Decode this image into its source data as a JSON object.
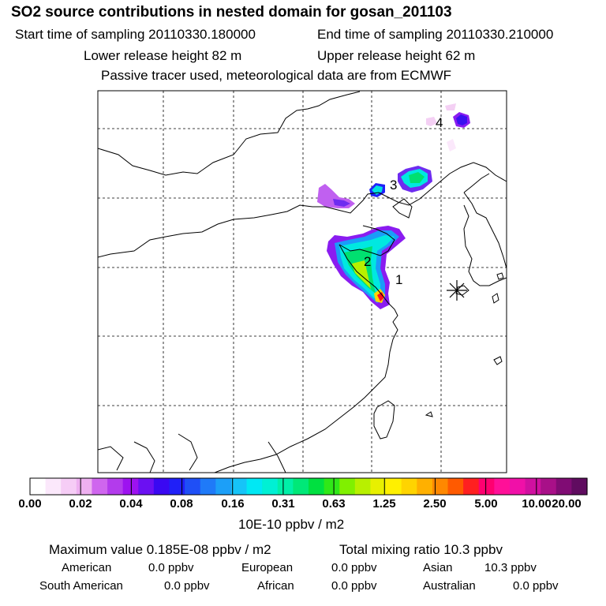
{
  "header": {
    "title": "SO2 source contributions in nested domain for gosan_201103",
    "start_time": "Start time of sampling 20110330.180000",
    "end_time": "End time of sampling 20110330.210000",
    "lower_release": "Lower release height   82 m",
    "upper_release": "Upper release height   62 m",
    "note": "Passive tracer used, meteorological data are from ECMWF"
  },
  "map": {
    "receptor_marker": "asterisk",
    "source_labels": [
      "1",
      "2",
      "3",
      "4"
    ],
    "grid_lines": true
  },
  "colorbar": {
    "unit": "10E-10 ppbv / m2",
    "ticks": [
      "0.00",
      "0.02",
      "0.04",
      "0.08",
      "0.16",
      "0.31",
      "0.63",
      "1.25",
      "2.50",
      "5.00",
      "10.00",
      "20.00"
    ],
    "colors": [
      "#ffffff",
      "#fbe8fb",
      "#f6cdf6",
      "#eeb0f0",
      "#cf66ee",
      "#b33bec",
      "#9d12f0",
      "#6b10f2",
      "#3a08f2",
      "#2020f8",
      "#1f4ff6",
      "#1f7af8",
      "#1c9ff8",
      "#16c4f8",
      "#00e8f4",
      "#00f0d4",
      "#00f0a8",
      "#00e878",
      "#00e040",
      "#30e818",
      "#80f000",
      "#b8f000",
      "#e8f000",
      "#fff000",
      "#ffd400",
      "#ffb000",
      "#ff8800",
      "#ff5a00",
      "#ff2020",
      "#ff0070",
      "#ff1098",
      "#f010a8",
      "#d010a0",
      "#a81088",
      "#800c74",
      "#600c60"
    ]
  },
  "stats": {
    "maximum": "Maximum value  0.185E-08 ppbv / m2",
    "total": "Total mixing ratio       10.3 ppbv"
  },
  "regions": [
    {
      "name": "American",
      "value": "0.0 ppbv"
    },
    {
      "name": "European",
      "value": "0.0 ppbv"
    },
    {
      "name": "Asian",
      "value": "10.3 ppbv"
    },
    {
      "name": "South American",
      "value": "0.0 ppbv"
    },
    {
      "name": "African",
      "value": "0.0 ppbv"
    },
    {
      "name": "Australian",
      "value": "0.0 ppbv"
    }
  ]
}
